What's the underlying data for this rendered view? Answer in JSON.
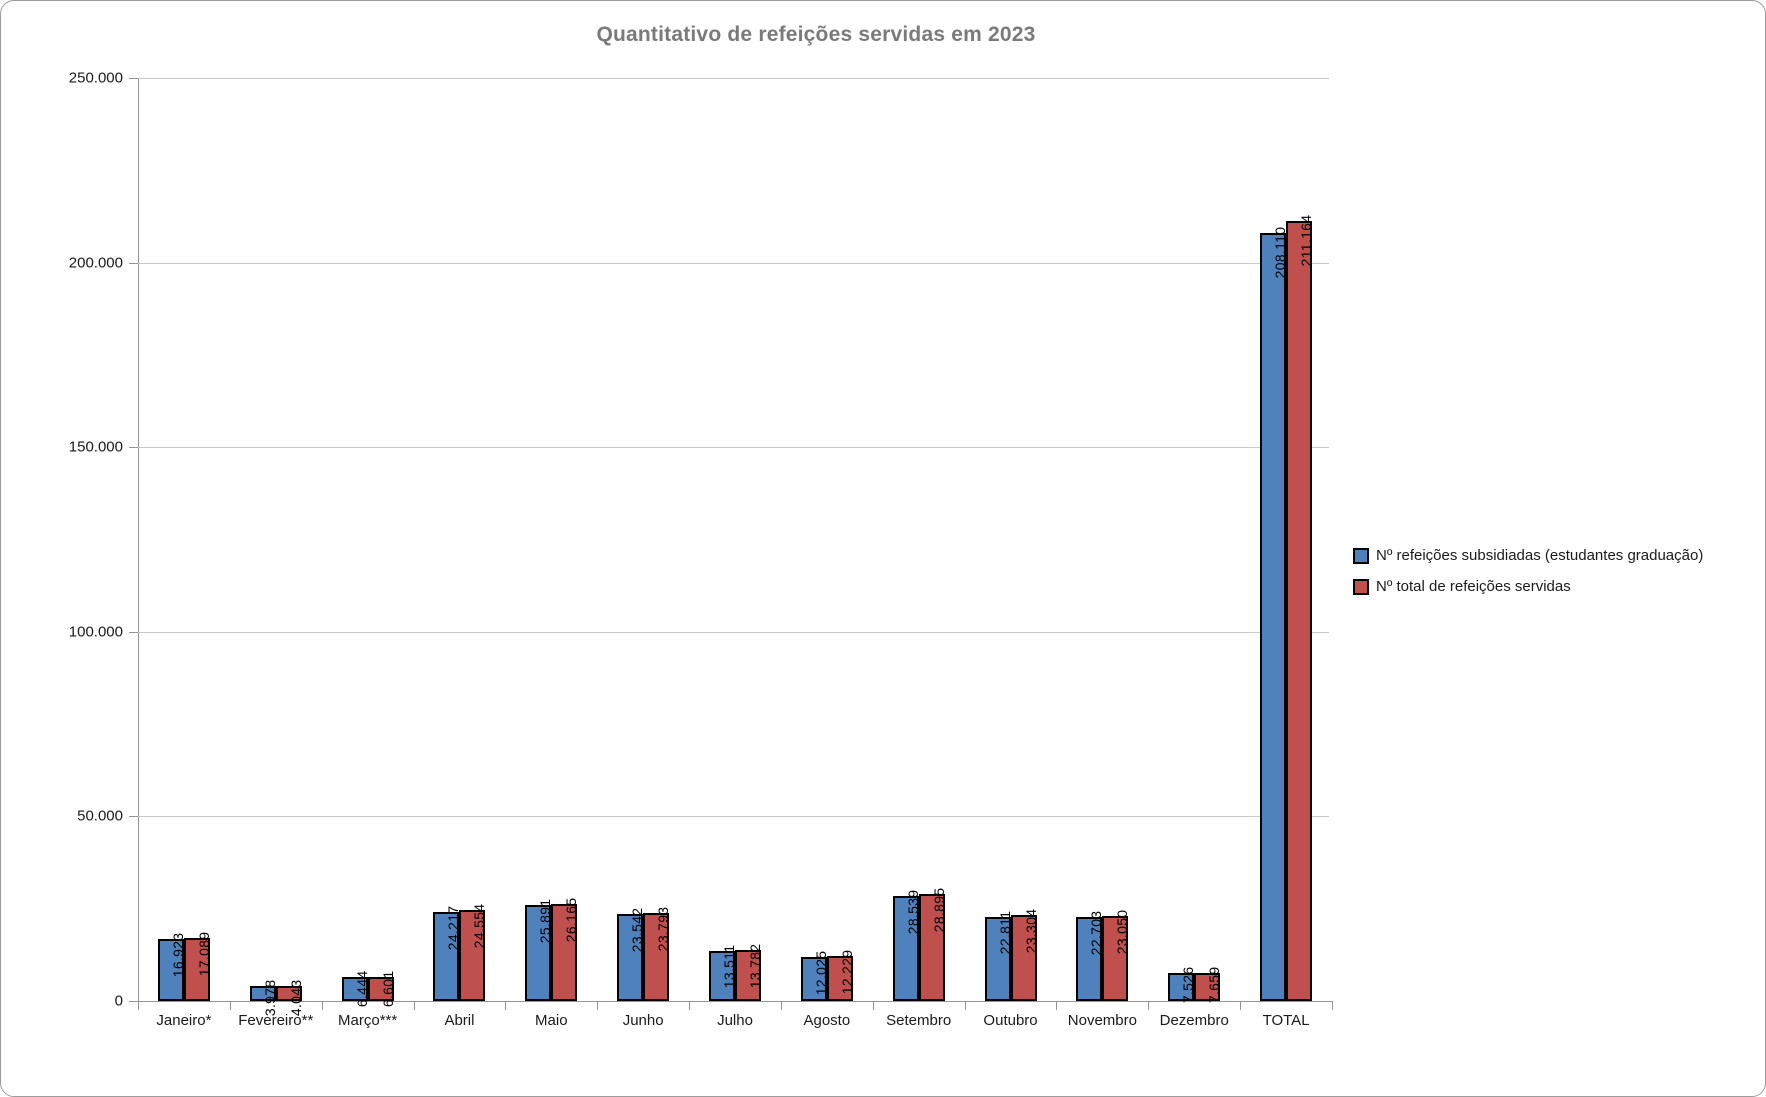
{
  "title": "Quantitativo de refeições servidas em 2023",
  "chart_data": {
    "type": "bar",
    "title": "Quantitativo de refeições servidas em 2023",
    "xlabel": "",
    "ylabel": "",
    "categories": [
      "Janeiro*",
      "Fevereiro**",
      "Março***",
      "Abril",
      "Maio",
      "Junho",
      "Julho",
      "Agosto",
      "Setembro",
      "Outubro",
      "Novembro",
      "Dezembro",
      "TOTAL"
    ],
    "series": [
      {
        "name": "Nº refeições subsidiadas (estudantes graduação)",
        "color": "#4F81BD",
        "values": [
          16923,
          3978,
          6444,
          24217,
          25891,
          23542,
          13511,
          12025,
          28539,
          22811,
          22703,
          7526,
          208110
        ],
        "labels": [
          "16.923",
          "3.978",
          "6.444",
          "24.217",
          "25.891",
          "23.542",
          "13.511",
          "12.025",
          "28.539",
          "22.811",
          "22.703",
          "7.526",
          "208.110"
        ]
      },
      {
        "name": "Nº total de refeições servidas",
        "color": "#C0504D",
        "values": [
          17089,
          4043,
          6601,
          24554,
          26165,
          23793,
          13782,
          12229,
          28895,
          23304,
          23050,
          7659,
          211164
        ],
        "labels": [
          "17.089",
          "4.043",
          "6.601",
          "24.554",
          "26.165",
          "23.793",
          "13.782",
          "12.229",
          "28.895",
          "23.304",
          "23.050",
          "7.659",
          "211.164"
        ]
      }
    ],
    "ylim": [
      0,
      250000
    ],
    "ytick_interval": 50000,
    "ytick_labels": [
      "0",
      "50.000",
      "100.000",
      "150.000",
      "200.000",
      "250.000"
    ],
    "grid": true,
    "legend_position": "right",
    "bar_border_color": "#000000"
  }
}
